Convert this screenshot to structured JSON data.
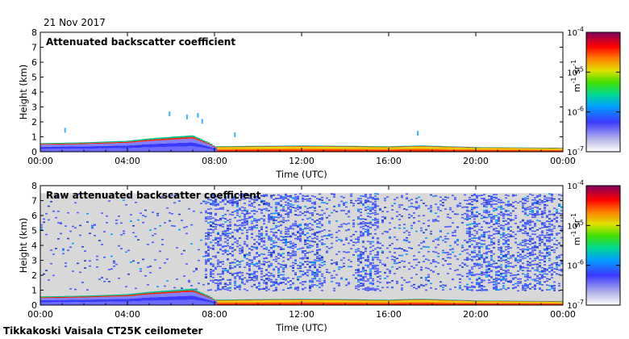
{
  "date_label": "21 Nov 2017",
  "footer": "Tikkakoski Vaisala CT25K ceilometer",
  "chart_data": [
    {
      "type": "heatmap",
      "title": "Attenuated backscatter coefficient",
      "xlabel": "Time (UTC)",
      "ylabel": "Height (km)",
      "x_ticks": [
        "00:00",
        "04:00",
        "08:00",
        "12:00",
        "16:00",
        "20:00",
        "00:00"
      ],
      "xlim_hours": [
        0,
        24
      ],
      "y_ticks": [
        0,
        1,
        2,
        3,
        4,
        5,
        6,
        7,
        8
      ],
      "ylim_km": [
        0,
        8
      ],
      "colorbar": {
        "scale": "log",
        "range": [
          1e-07,
          0.0001
        ],
        "tick_labels": [
          "10-7",
          "10-6",
          "10-5",
          "10-4"
        ],
        "unit": "m-1 sr-1"
      },
      "features": {
        "boundary_layer_top_km": [
          [
            0,
            0.55
          ],
          [
            2,
            0.6
          ],
          [
            4,
            0.7
          ],
          [
            5,
            0.85
          ],
          [
            6,
            0.95
          ],
          [
            7,
            1.05
          ],
          [
            7.8,
            0.55
          ],
          [
            8,
            0.35
          ],
          [
            12,
            0.4
          ],
          [
            16,
            0.35
          ],
          [
            17.5,
            0.4
          ],
          [
            20,
            0.3
          ],
          [
            24,
            0.25
          ]
        ],
        "aerosol_signal_max_height_km": 2.7
      }
    },
    {
      "type": "heatmap",
      "title": "Raw attenuated backscatter coefficient",
      "xlabel": "Time (UTC)",
      "ylabel": "Height (km)",
      "x_ticks": [
        "00:00",
        "04:00",
        "08:00",
        "12:00",
        "16:00",
        "20:00",
        "00:00"
      ],
      "xlim_hours": [
        0,
        24
      ],
      "y_ticks": [
        0,
        1,
        2,
        3,
        4,
        5,
        6,
        7,
        8
      ],
      "ylim_km": [
        0,
        8
      ],
      "colorbar": {
        "scale": "log",
        "range": [
          1e-07,
          0.0001
        ],
        "tick_labels": [
          "10-7",
          "10-6",
          "10-5",
          "10-4"
        ],
        "unit": "m-1 sr-1"
      },
      "features": {
        "data_top_km": 7.5,
        "noise_background": "grey"
      }
    }
  ]
}
